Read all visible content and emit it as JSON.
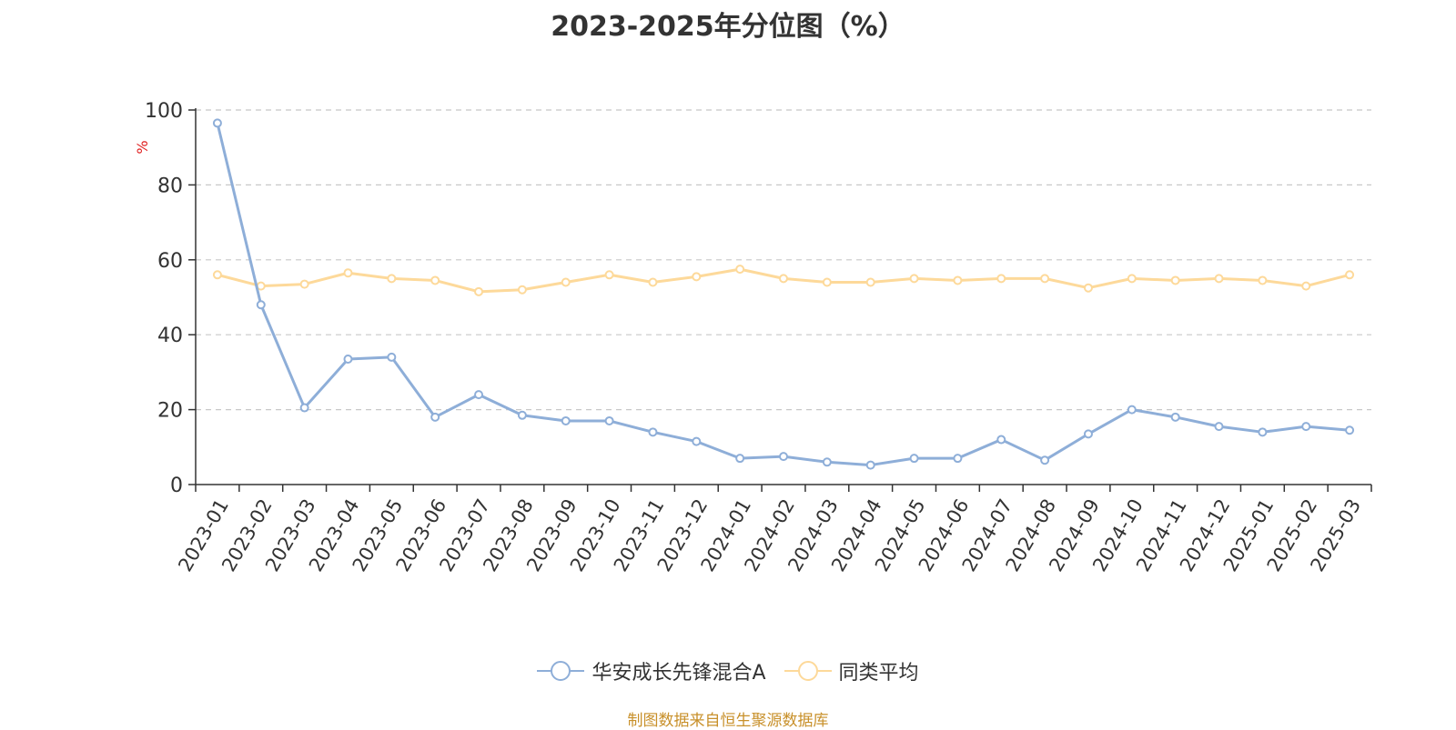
{
  "title": "2023-2025年分位图（%）",
  "source_note": "制图数据来自恒生聚源数据库",
  "chart_data": {
    "type": "line",
    "title": "2023-2025年分位图（%）",
    "ylabel": "%",
    "xlabel": "",
    "ylim": [
      0,
      100
    ],
    "yticks": [
      0,
      20,
      40,
      60,
      80,
      100
    ],
    "grid": true,
    "legend_position": "bottom",
    "categories": [
      "2023-01",
      "2023-02",
      "2023-03",
      "2023-04",
      "2023-05",
      "2023-06",
      "2023-07",
      "2023-08",
      "2023-09",
      "2023-10",
      "2023-11",
      "2023-12",
      "2024-01",
      "2024-02",
      "2024-03",
      "2024-04",
      "2024-05",
      "2024-06",
      "2024-07",
      "2024-08",
      "2024-09",
      "2024-10",
      "2024-11",
      "2024-12",
      "2025-01",
      "2025-02",
      "2025-03"
    ],
    "series": [
      {
        "name": "华安成长先锋混合A",
        "color": "#8eaed8",
        "values": [
          96.5,
          48.0,
          20.5,
          33.5,
          34.0,
          18.0,
          24.0,
          18.5,
          17.0,
          17.0,
          14.0,
          11.5,
          7.0,
          7.5,
          6.0,
          5.2,
          7.0,
          7.0,
          12.0,
          6.5,
          13.5,
          20.0,
          18.0,
          15.5,
          14.0,
          15.5,
          14.5
        ]
      },
      {
        "name": "同类平均",
        "color": "#fdd99a",
        "values": [
          56.0,
          53.0,
          53.5,
          56.5,
          55.0,
          54.5,
          51.5,
          52.0,
          54.0,
          56.0,
          54.0,
          55.5,
          57.5,
          55.0,
          54.0,
          54.0,
          55.0,
          54.5,
          55.0,
          55.0,
          52.5,
          55.0,
          54.5,
          55.0,
          54.5,
          53.0,
          56.0
        ]
      }
    ]
  }
}
